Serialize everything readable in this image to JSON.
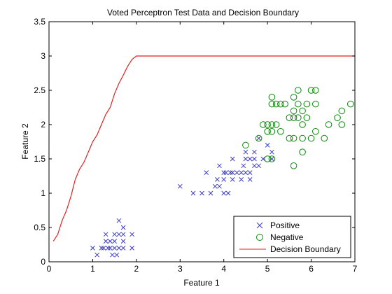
{
  "chart_data": {
    "type": "scatter",
    "title": "Voted Perceptron Test Data and Decision Boundary",
    "xlabel": "Feature 1",
    "ylabel": "Feature 2",
    "xlim": [
      0,
      7
    ],
    "ylim": [
      0,
      3.5
    ],
    "grid": false,
    "legend_position": "bottom-right",
    "x_ticks": [
      "0",
      "1",
      "2",
      "3",
      "4",
      "5",
      "6",
      "7"
    ],
    "y_ticks": [
      "0",
      "0.5",
      "1",
      "1.5",
      "2",
      "2.5",
      "3",
      "3.5"
    ],
    "series": [
      {
        "name": "Positive",
        "marker": "x",
        "color": "#3c3ccc",
        "points": [
          [
            1.0,
            0.2
          ],
          [
            1.1,
            0.1
          ],
          [
            1.2,
            0.2
          ],
          [
            1.25,
            0.2
          ],
          [
            1.3,
            0.4
          ],
          [
            1.3,
            0.3
          ],
          [
            1.35,
            0.2
          ],
          [
            1.4,
            0.3
          ],
          [
            1.4,
            0.2
          ],
          [
            1.45,
            0.1
          ],
          [
            1.5,
            0.4
          ],
          [
            1.5,
            0.3
          ],
          [
            1.5,
            0.2
          ],
          [
            1.55,
            0.1
          ],
          [
            1.6,
            0.6
          ],
          [
            1.6,
            0.4
          ],
          [
            1.6,
            0.2
          ],
          [
            1.7,
            0.5
          ],
          [
            1.7,
            0.4
          ],
          [
            1.7,
            0.3
          ],
          [
            1.7,
            0.2
          ],
          [
            1.9,
            0.4
          ],
          [
            1.9,
            0.2
          ],
          [
            3.0,
            1.1
          ],
          [
            3.3,
            1.0
          ],
          [
            3.5,
            1.0
          ],
          [
            3.6,
            1.3
          ],
          [
            3.7,
            1.0
          ],
          [
            3.8,
            1.1
          ],
          [
            3.85,
            1.2
          ],
          [
            3.9,
            1.4
          ],
          [
            3.9,
            1.1
          ],
          [
            4.0,
            1.3
          ],
          [
            4.0,
            1.2
          ],
          [
            4.0,
            1.0
          ],
          [
            4.05,
            1.3
          ],
          [
            4.1,
            1.0
          ],
          [
            4.15,
            1.3
          ],
          [
            4.2,
            1.5
          ],
          [
            4.2,
            1.3
          ],
          [
            4.2,
            1.2
          ],
          [
            4.3,
            1.3
          ],
          [
            4.4,
            1.3
          ],
          [
            4.4,
            1.2
          ],
          [
            4.45,
            1.4
          ],
          [
            4.5,
            1.6
          ],
          [
            4.5,
            1.5
          ],
          [
            4.5,
            1.3
          ],
          [
            4.6,
            1.5
          ],
          [
            4.6,
            1.3
          ],
          [
            4.6,
            1.2
          ],
          [
            4.7,
            1.6
          ],
          [
            4.7,
            1.5
          ],
          [
            4.7,
            1.4
          ],
          [
            4.8,
            1.8
          ],
          [
            4.8,
            1.4
          ],
          [
            4.9,
            1.5
          ],
          [
            5.0,
            1.7
          ],
          [
            5.1,
            1.6
          ],
          [
            5.1,
            1.5
          ]
        ]
      },
      {
        "name": "Negative",
        "marker": "o",
        "color": "#0a8a0a",
        "points": [
          [
            4.5,
            1.7
          ],
          [
            4.8,
            1.8
          ],
          [
            4.9,
            2.0
          ],
          [
            5.0,
            2.0
          ],
          [
            5.0,
            1.9
          ],
          [
            5.0,
            1.5
          ],
          [
            5.1,
            2.0
          ],
          [
            5.1,
            1.9
          ],
          [
            5.1,
            1.5
          ],
          [
            5.1,
            2.3
          ],
          [
            5.1,
            2.4
          ],
          [
            5.2,
            2.0
          ],
          [
            5.2,
            2.3
          ],
          [
            5.3,
            2.3
          ],
          [
            5.3,
            1.9
          ],
          [
            5.4,
            2.3
          ],
          [
            5.5,
            2.1
          ],
          [
            5.5,
            1.8
          ],
          [
            5.6,
            2.1
          ],
          [
            5.6,
            2.2
          ],
          [
            5.6,
            2.4
          ],
          [
            5.6,
            1.8
          ],
          [
            5.6,
            1.4
          ],
          [
            5.7,
            2.5
          ],
          [
            5.7,
            2.3
          ],
          [
            5.7,
            2.1
          ],
          [
            5.8,
            2.2
          ],
          [
            5.8,
            2.0
          ],
          [
            5.8,
            1.8
          ],
          [
            5.8,
            1.6
          ],
          [
            5.9,
            2.3
          ],
          [
            5.9,
            2.1
          ],
          [
            6.0,
            2.5
          ],
          [
            6.0,
            1.8
          ],
          [
            6.1,
            2.5
          ],
          [
            6.1,
            2.3
          ],
          [
            6.1,
            1.9
          ],
          [
            6.3,
            1.8
          ],
          [
            6.4,
            2.0
          ],
          [
            6.6,
            2.1
          ],
          [
            6.7,
            2.0
          ],
          [
            6.7,
            2.2
          ],
          [
            6.9,
            2.3
          ]
        ]
      },
      {
        "name": "Decision Boundary",
        "marker": "line",
        "color": "#e02020",
        "points": [
          [
            0.1,
            0.3
          ],
          [
            0.2,
            0.4
          ],
          [
            0.3,
            0.6
          ],
          [
            0.4,
            0.75
          ],
          [
            0.5,
            0.95
          ],
          [
            0.6,
            1.2
          ],
          [
            0.7,
            1.35
          ],
          [
            0.8,
            1.45
          ],
          [
            0.9,
            1.6
          ],
          [
            1.0,
            1.75
          ],
          [
            1.1,
            1.85
          ],
          [
            1.2,
            2.0
          ],
          [
            1.3,
            2.15
          ],
          [
            1.4,
            2.25
          ],
          [
            1.5,
            2.45
          ],
          [
            1.6,
            2.6
          ],
          [
            1.7,
            2.72
          ],
          [
            1.8,
            2.85
          ],
          [
            1.9,
            2.95
          ],
          [
            2.0,
            3.0
          ],
          [
            7.0,
            3.0
          ]
        ]
      }
    ]
  }
}
